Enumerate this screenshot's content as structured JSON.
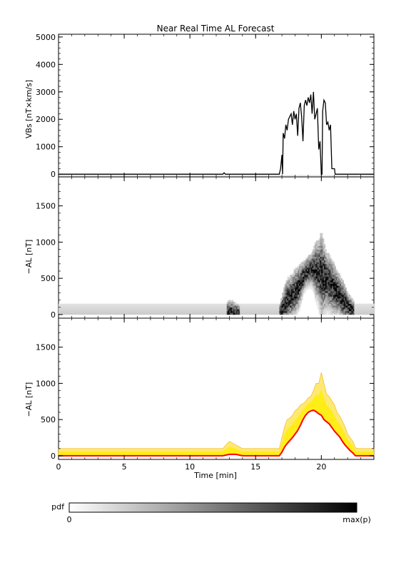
{
  "title": "Near Real Time AL Forecast",
  "xlabel": "Time [min]",
  "colorbar": {
    "label": "pdf",
    "min_label": "0",
    "max_label": "max(p)"
  },
  "chart_data": [
    {
      "type": "line",
      "panel": "vbs",
      "ylabel": "VBs [nT×km/s]",
      "xlim": [
        0,
        24
      ],
      "ylim": [
        -100,
        5100
      ],
      "yticks": [
        0,
        1000,
        2000,
        3000,
        4000,
        5000
      ],
      "xticks": [
        0,
        5,
        10,
        15,
        20
      ],
      "series": [
        {
          "color": "#000000",
          "x": [
            0,
            12.5,
            12.6,
            12.7,
            16.8,
            16.9,
            17.0,
            17.05,
            17.1,
            17.2,
            17.3,
            17.4,
            17.5,
            17.6,
            17.7,
            17.8,
            17.9,
            18.0,
            18.1,
            18.2,
            18.3,
            18.4,
            18.5,
            18.6,
            18.7,
            18.8,
            18.9,
            19.0,
            19.1,
            19.2,
            19.3,
            19.4,
            19.5,
            19.6,
            19.7,
            19.8,
            19.9,
            20.0,
            20.05,
            20.1,
            20.2,
            20.3,
            20.4,
            20.5,
            20.6,
            20.7,
            20.8,
            20.9,
            21.0,
            21.05,
            21.1,
            21.9,
            22.0,
            24.0
          ],
          "y": [
            0,
            0,
            50,
            0,
            0,
            200,
            700,
            0,
            1500,
            1300,
            1800,
            1600,
            2000,
            2100,
            2200,
            1800,
            2300,
            2000,
            2200,
            1400,
            2400,
            2600,
            2100,
            1200,
            2500,
            2700,
            2500,
            2800,
            2600,
            2900,
            2200,
            3000,
            2000,
            2200,
            2400,
            900,
            1200,
            0,
            0,
            2300,
            2700,
            2600,
            1800,
            1900,
            1600,
            1800,
            200,
            200,
            200,
            0,
            0,
            0,
            0,
            0
          ]
        }
      ]
    },
    {
      "type": "heatmap",
      "panel": "pdf",
      "ylabel": "−AL [nT]",
      "xlim": [
        0,
        24
      ],
      "ylim": [
        -50,
        1900
      ],
      "yticks": [
        0,
        500,
        1000,
        1500
      ],
      "xticks": [
        0,
        5,
        10,
        15,
        20
      ],
      "colormap": [
        "#ffffff",
        "#000000"
      ],
      "median": {
        "x": [
          0,
          12.5,
          13.0,
          13.5,
          14.0,
          16.8,
          17.0,
          17.2,
          17.4,
          17.6,
          17.8,
          18.0,
          18.2,
          18.4,
          18.6,
          18.8,
          19.0,
          19.2,
          19.4,
          19.6,
          19.8,
          20.0,
          20.2,
          20.4,
          20.6,
          20.8,
          21.0,
          21.2,
          21.4,
          21.6,
          21.8,
          22.0,
          22.2,
          22.4,
          22.6,
          22.8,
          24.0
        ],
        "y": [
          0,
          0,
          20,
          20,
          0,
          0,
          50,
          120,
          170,
          210,
          250,
          300,
          350,
          420,
          500,
          560,
          600,
          620,
          630,
          610,
          580,
          560,
          500,
          470,
          440,
          390,
          340,
          300,
          260,
          200,
          150,
          110,
          70,
          40,
          0,
          0,
          0
        ]
      },
      "upper": {
        "x": [
          0,
          12.5,
          13.0,
          13.5,
          14.0,
          16.8,
          17.0,
          17.2,
          17.4,
          17.6,
          17.8,
          18.0,
          18.2,
          18.4,
          18.6,
          18.8,
          19.0,
          19.2,
          19.4,
          19.6,
          19.8,
          20.0,
          20.2,
          20.4,
          20.6,
          20.8,
          21.0,
          21.2,
          21.4,
          21.6,
          21.8,
          22.0,
          22.2,
          22.4,
          22.6,
          22.8,
          24.0
        ],
        "y": [
          100,
          100,
          200,
          150,
          100,
          100,
          250,
          400,
          500,
          520,
          560,
          620,
          650,
          700,
          720,
          750,
          800,
          820,
          900,
          1000,
          1000,
          1150,
          1000,
          850,
          820,
          760,
          700,
          600,
          550,
          480,
          400,
          300,
          250,
          200,
          110,
          100,
          100
        ]
      }
    },
    {
      "type": "area",
      "panel": "forecast",
      "ylabel": "−AL [nT]",
      "xlim": [
        0,
        24
      ],
      "ylim": [
        -50,
        1900
      ],
      "yticks": [
        0,
        500,
        1000,
        1500
      ],
      "xticks": [
        0,
        5,
        10,
        15,
        20
      ],
      "series": [
        {
          "color": "#ffd700",
          "x": [
            0,
            12.5,
            13.0,
            13.5,
            14.0,
            16.8,
            17.0,
            17.2,
            17.4,
            17.6,
            17.8,
            18.0,
            18.2,
            18.4,
            18.6,
            18.8,
            19.0,
            19.2,
            19.4,
            19.6,
            19.8,
            20.0,
            20.2,
            20.4,
            20.6,
            20.8,
            21.0,
            21.2,
            21.4,
            21.6,
            21.8,
            22.0,
            22.2,
            22.4,
            22.6,
            22.8,
            24.0
          ],
          "y": [
            100,
            100,
            200,
            150,
            100,
            100,
            250,
            400,
            500,
            520,
            560,
            620,
            650,
            700,
            720,
            750,
            800,
            820,
            900,
            1000,
            1000,
            1150,
            1000,
            850,
            820,
            760,
            700,
            600,
            550,
            480,
            400,
            300,
            250,
            200,
            110,
            100,
            100
          ]
        },
        {
          "color": "#ff0000",
          "x": [
            0,
            12.5,
            13.0,
            13.5,
            14.0,
            16.8,
            17.0,
            17.2,
            17.4,
            17.6,
            17.8,
            18.0,
            18.2,
            18.4,
            18.6,
            18.8,
            19.0,
            19.2,
            19.4,
            19.6,
            19.8,
            20.0,
            20.2,
            20.4,
            20.6,
            20.8,
            21.0,
            21.2,
            21.4,
            21.6,
            21.8,
            22.0,
            22.2,
            22.4,
            22.6,
            22.8,
            24.0
          ],
          "y": [
            0,
            0,
            20,
            20,
            0,
            0,
            50,
            120,
            170,
            210,
            250,
            300,
            350,
            420,
            500,
            560,
            600,
            620,
            630,
            610,
            580,
            560,
            500,
            470,
            440,
            390,
            340,
            300,
            260,
            200,
            150,
            110,
            70,
            40,
            0,
            0,
            0
          ]
        }
      ]
    }
  ]
}
